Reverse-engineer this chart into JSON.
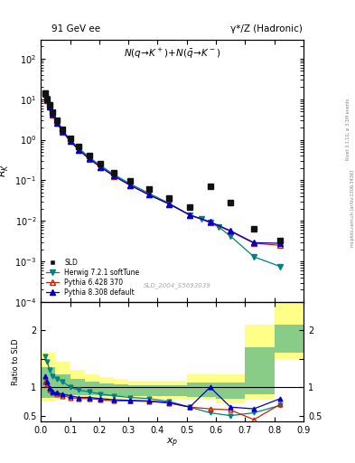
{
  "title_left": "91 GeV ee",
  "title_right": "γ*/Z (Hadronic)",
  "watermark": "SLD_2004_S5693039",
  "ylim_main": [
    0.0001,
    300
  ],
  "ylim_ratio": [
    0.4,
    2.5
  ],
  "xlim": [
    0.0,
    0.9
  ],
  "sld_x": [
    0.014,
    0.022,
    0.03,
    0.04,
    0.055,
    0.075,
    0.1,
    0.13,
    0.165,
    0.205,
    0.25,
    0.305,
    0.37,
    0.44,
    0.51,
    0.58,
    0.65,
    0.73,
    0.82
  ],
  "sld_y": [
    14.0,
    10.0,
    7.2,
    4.8,
    3.0,
    1.85,
    1.1,
    0.67,
    0.41,
    0.255,
    0.158,
    0.098,
    0.06,
    0.037,
    0.022,
    0.07,
    0.029,
    0.0065,
    0.0033
  ],
  "sld_color": "#111111",
  "herwig_x": [
    0.014,
    0.022,
    0.03,
    0.04,
    0.055,
    0.075,
    0.1,
    0.13,
    0.165,
    0.205,
    0.25,
    0.305,
    0.37,
    0.44,
    0.51,
    0.55,
    0.58,
    0.61,
    0.65,
    0.73,
    0.82
  ],
  "herwig_y": [
    14.5,
    10.5,
    7.1,
    4.6,
    2.85,
    1.73,
    1.02,
    0.62,
    0.375,
    0.23,
    0.14,
    0.083,
    0.048,
    0.027,
    0.014,
    0.011,
    0.009,
    0.007,
    0.0042,
    0.0013,
    0.00075
  ],
  "herwig_color": "#008080",
  "herwig_label": "Herwig 7.2.1 softTune",
  "pythia6_x": [
    0.014,
    0.022,
    0.03,
    0.04,
    0.055,
    0.075,
    0.1,
    0.13,
    0.165,
    0.205,
    0.25,
    0.305,
    0.37,
    0.44,
    0.51,
    0.58,
    0.65,
    0.73,
    0.82
  ],
  "pythia6_y": [
    13.5,
    9.5,
    6.5,
    4.2,
    2.6,
    1.58,
    0.93,
    0.56,
    0.34,
    0.21,
    0.127,
    0.076,
    0.044,
    0.026,
    0.014,
    0.0092,
    0.0055,
    0.0028,
    0.0025
  ],
  "pythia6_color": "#cc2200",
  "pythia6_label": "Pythia 6.428 370",
  "pythia8_x": [
    0.014,
    0.022,
    0.03,
    0.04,
    0.055,
    0.075,
    0.1,
    0.13,
    0.165,
    0.205,
    0.25,
    0.305,
    0.37,
    0.44,
    0.51,
    0.58,
    0.65,
    0.73,
    0.82
  ],
  "pythia8_y": [
    13.8,
    9.8,
    6.7,
    4.3,
    2.65,
    1.61,
    0.95,
    0.57,
    0.345,
    0.213,
    0.129,
    0.077,
    0.044,
    0.026,
    0.014,
    0.0095,
    0.0057,
    0.0029,
    0.0028
  ],
  "pythia8_color": "#0000cc",
  "pythia8_label": "Pythia 8.308 default",
  "ratio_x": [
    0.014,
    0.022,
    0.03,
    0.04,
    0.055,
    0.075,
    0.1,
    0.13,
    0.165,
    0.205,
    0.25,
    0.305,
    0.37,
    0.44,
    0.51,
    0.58,
    0.65,
    0.73,
    0.82
  ],
  "ratio_herwig": [
    1.55,
    1.45,
    1.3,
    1.2,
    1.15,
    1.1,
    1.0,
    0.95,
    0.92,
    0.88,
    0.85,
    0.82,
    0.8,
    0.75,
    0.65,
    0.55,
    0.5,
    0.55,
    0.68
  ],
  "ratio_pythia6": [
    1.1,
    1.05,
    0.95,
    0.9,
    0.88,
    0.85,
    0.82,
    0.8,
    0.8,
    0.78,
    0.76,
    0.76,
    0.75,
    0.72,
    0.65,
    0.62,
    0.6,
    0.43,
    0.7
  ],
  "ratio_pythia8": [
    1.2,
    1.1,
    0.98,
    0.92,
    0.9,
    0.88,
    0.85,
    0.82,
    0.82,
    0.8,
    0.78,
    0.77,
    0.76,
    0.73,
    0.65,
    1.0,
    0.65,
    0.62,
    0.8
  ],
  "band_x_edges": [
    0.0,
    0.05,
    0.1,
    0.15,
    0.2,
    0.25,
    0.3,
    0.4,
    0.5,
    0.6,
    0.7,
    0.8,
    0.9
  ],
  "band_yellow_lo": [
    0.75,
    0.8,
    0.82,
    0.82,
    0.78,
    0.8,
    0.8,
    0.8,
    0.78,
    0.72,
    0.78,
    1.5,
    1.55
  ],
  "band_yellow_hi": [
    1.6,
    1.45,
    1.3,
    1.22,
    1.18,
    1.15,
    1.12,
    1.12,
    1.22,
    1.22,
    2.1,
    2.5,
    2.55
  ],
  "band_green_lo": [
    0.82,
    0.85,
    0.86,
    0.86,
    0.84,
    0.85,
    0.85,
    0.84,
    0.83,
    0.8,
    0.88,
    1.6,
    1.62
  ],
  "band_green_hi": [
    1.35,
    1.22,
    1.14,
    1.1,
    1.06,
    1.05,
    1.04,
    1.04,
    1.08,
    1.08,
    1.7,
    2.1,
    2.12
  ]
}
